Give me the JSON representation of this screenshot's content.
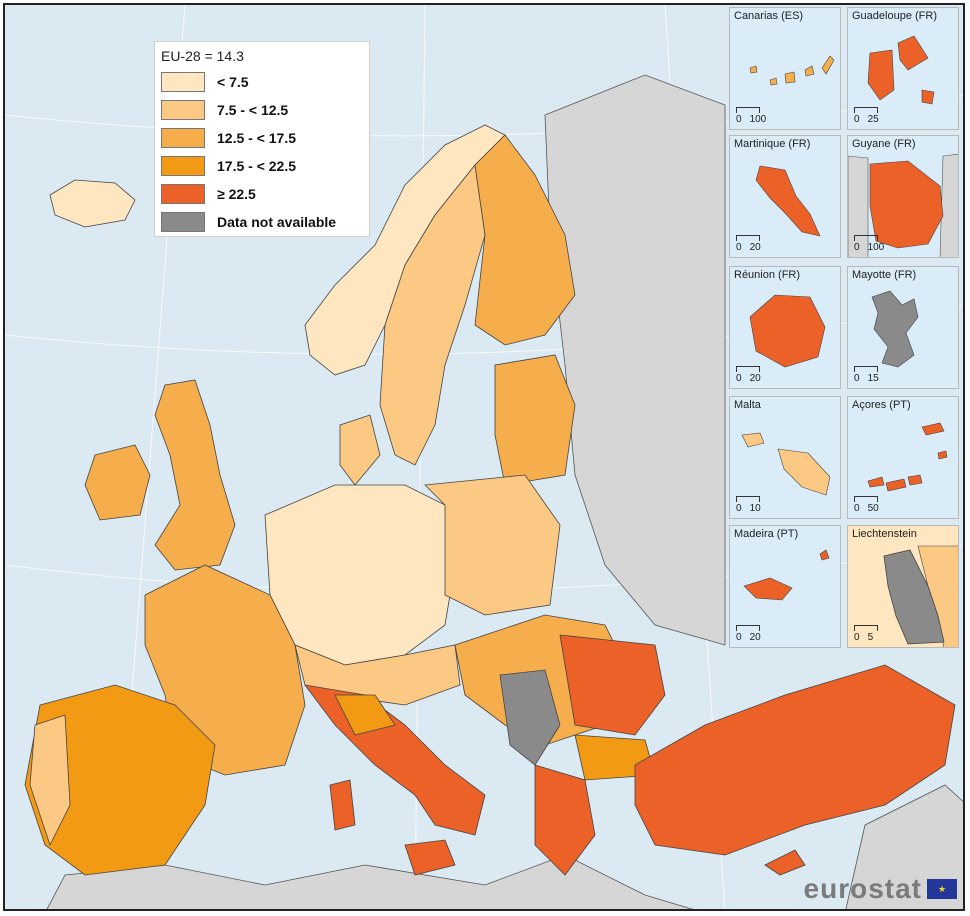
{
  "legend": {
    "title": "EU-28 = 14.3",
    "classes": [
      {
        "label": "< 7.5",
        "color": "#fde6c0"
      },
      {
        "label": "7.5 - < 12.5",
        "color": "#fbc983"
      },
      {
        "label": "12.5 - < 17.5",
        "color": "#f6ad4b"
      },
      {
        "label": "17.5 - < 22.5",
        "color": "#f39a14"
      },
      {
        "label": "≥ 22.5",
        "color": "#ec6127"
      },
      {
        "label": "Data not available",
        "color": "#8a8a8a"
      }
    ]
  },
  "insets": [
    {
      "title": "Canarias (ES)",
      "scale_start": "0",
      "scale_end": "100"
    },
    {
      "title": "Guadeloupe (FR)",
      "scale_start": "0",
      "scale_end": "25"
    },
    {
      "title": "Martinique (FR)",
      "scale_start": "0",
      "scale_end": "20"
    },
    {
      "title": "Guyane (FR)",
      "scale_start": "0",
      "scale_end": "100"
    },
    {
      "title": "Réunion (FR)",
      "scale_start": "0",
      "scale_end": "20"
    },
    {
      "title": "Mayotte (FR)",
      "scale_start": "0",
      "scale_end": "15"
    },
    {
      "title": "Malta",
      "scale_start": "0",
      "scale_end": "10"
    },
    {
      "title": "Açores (PT)",
      "scale_start": "0",
      "scale_end": "50"
    },
    {
      "title": "Madeira (PT)",
      "scale_start": "0",
      "scale_end": "20"
    },
    {
      "title": "Liechtenstein",
      "scale_start": "0",
      "scale_end": "5"
    }
  ],
  "logo": {
    "text": "eurostat",
    "icon": "eu-flag-icon"
  },
  "colors": {
    "sea": "#dbe9f2",
    "non_eu": "#d6d6d6",
    "border": "#333333"
  }
}
